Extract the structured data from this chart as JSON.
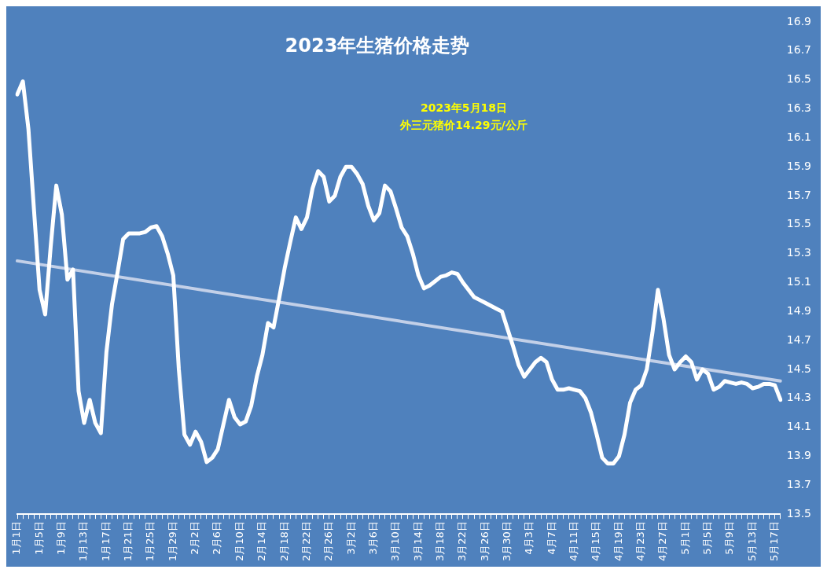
{
  "chart_data": {
    "type": "line",
    "title": "2023年生猪价格走势",
    "annotations": [
      "2023年5月18日",
      "外三元猪价14.29元/公斤"
    ],
    "categories": [
      "1月1日",
      null,
      null,
      null,
      "1月5日",
      null,
      null,
      null,
      "1月9日",
      null,
      null,
      null,
      "1月13日",
      null,
      null,
      null,
      "1月17日",
      null,
      null,
      null,
      "1月21日",
      null,
      null,
      null,
      "1月25日",
      null,
      null,
      null,
      "1月29日",
      null,
      null,
      null,
      "2月2日",
      null,
      null,
      null,
      "2月6日",
      null,
      null,
      null,
      "2月10日",
      null,
      null,
      null,
      "2月14日",
      null,
      null,
      null,
      "2月18日",
      null,
      null,
      null,
      "2月22日",
      null,
      null,
      null,
      "2月26日",
      null,
      null,
      null,
      "3月2日",
      null,
      null,
      null,
      "3月6日",
      null,
      null,
      null,
      "3月10日",
      null,
      null,
      null,
      "3月14日",
      null,
      null,
      null,
      "3月18日",
      null,
      null,
      null,
      "3月22日",
      null,
      null,
      null,
      "3月26日",
      null,
      null,
      null,
      "3月30日",
      null,
      null,
      null,
      "4月3日",
      null,
      null,
      null,
      "4月7日",
      null,
      null,
      null,
      "4月11日",
      null,
      null,
      null,
      "4月15日",
      null,
      null,
      null,
      "4月19日",
      null,
      null,
      null,
      "4月23日",
      null,
      null,
      null,
      "4月27日",
      null,
      null,
      null,
      "5月1日",
      null,
      null,
      null,
      "5月5日",
      null,
      null,
      null,
      "5月9日",
      null,
      null,
      null,
      "5月13日",
      null,
      null,
      null,
      "5月17日",
      null
    ],
    "series": [
      {
        "color": "#ffffff",
        "values": [
          16.4,
          16.49,
          16.16,
          15.6,
          15.05,
          14.88,
          15.35,
          15.77,
          15.57,
          15.12,
          15.19,
          14.35,
          14.13,
          14.29,
          14.13,
          14.06,
          14.62,
          14.95,
          15.17,
          15.4,
          15.44,
          15.44,
          15.44,
          15.45,
          15.48,
          15.49,
          15.42,
          15.3,
          15.15,
          14.5,
          14.05,
          13.98,
          14.07,
          14.0,
          13.86,
          13.89,
          13.95,
          14.12,
          14.29,
          14.17,
          14.12,
          14.14,
          14.25,
          14.45,
          14.6,
          14.82,
          14.79,
          14.99,
          15.2,
          15.38,
          15.55,
          15.47,
          15.55,
          15.75,
          15.87,
          15.83,
          15.66,
          15.7,
          15.83,
          15.9,
          15.9,
          15.85,
          15.78,
          15.63,
          15.53,
          15.58,
          15.77,
          15.73,
          15.61,
          15.48,
          15.42,
          15.3,
          15.15,
          15.06,
          15.08,
          15.11,
          15.14,
          15.15,
          15.17,
          15.16,
          15.1,
          15.05,
          15.0,
          14.98,
          14.96,
          14.94,
          14.92,
          14.9,
          14.78,
          14.66,
          14.53,
          14.45,
          14.5,
          14.55,
          14.58,
          14.55,
          14.43,
          14.36,
          14.36,
          14.37,
          14.36,
          14.35,
          14.3,
          14.2,
          14.05,
          13.89,
          13.85,
          13.85,
          13.9,
          14.05,
          14.27,
          14.36,
          14.39,
          14.5,
          14.75,
          15.05,
          14.85,
          14.6,
          14.5,
          14.55,
          14.59,
          14.55,
          14.43,
          14.5,
          14.47,
          14.36,
          14.38,
          14.42,
          14.41,
          14.4,
          14.41,
          14.4,
          14.37,
          14.38,
          14.4,
          14.4,
          14.39,
          14.29
        ]
      },
      {
        "color": "#c3d0e8",
        "values": [
          15.25,
          null,
          null,
          null,
          null,
          null,
          null,
          null,
          null,
          null,
          null,
          null,
          null,
          null,
          null,
          null,
          null,
          null,
          null,
          null,
          null,
          null,
          null,
          null,
          null,
          null,
          null,
          null,
          null,
          null,
          null,
          null,
          null,
          null,
          null,
          null,
          null,
          null,
          null,
          null,
          null,
          null,
          null,
          null,
          null,
          null,
          null,
          null,
          null,
          null,
          null,
          null,
          null,
          null,
          null,
          null,
          null,
          null,
          null,
          null,
          null,
          null,
          null,
          null,
          null,
          null,
          null,
          null,
          null,
          null,
          null,
          null,
          null,
          null,
          null,
          null,
          null,
          null,
          null,
          null,
          null,
          null,
          null,
          null,
          null,
          null,
          null,
          null,
          null,
          null,
          null,
          null,
          null,
          null,
          null,
          null,
          null,
          null,
          null,
          null,
          null,
          null,
          null,
          null,
          null,
          null,
          null,
          null,
          null,
          null,
          null,
          null,
          null,
          null,
          null,
          null,
          null,
          null,
          null,
          null,
          null,
          null,
          null,
          null,
          null,
          null,
          null,
          null,
          null,
          null,
          null,
          null,
          null,
          null,
          null,
          null,
          null,
          14.42
        ]
      }
    ],
    "ylim": [
      13.5,
      16.9
    ],
    "yticks": [
      13.5,
      13.7,
      13.9,
      14.1,
      14.3,
      14.5,
      14.7,
      14.9,
      15.1,
      15.3,
      15.5,
      15.7,
      15.9,
      16.1,
      16.3,
      16.5,
      16.7,
      16.9
    ],
    "grid": false,
    "legend": false,
    "marker": "none",
    "line_style": "solid"
  }
}
